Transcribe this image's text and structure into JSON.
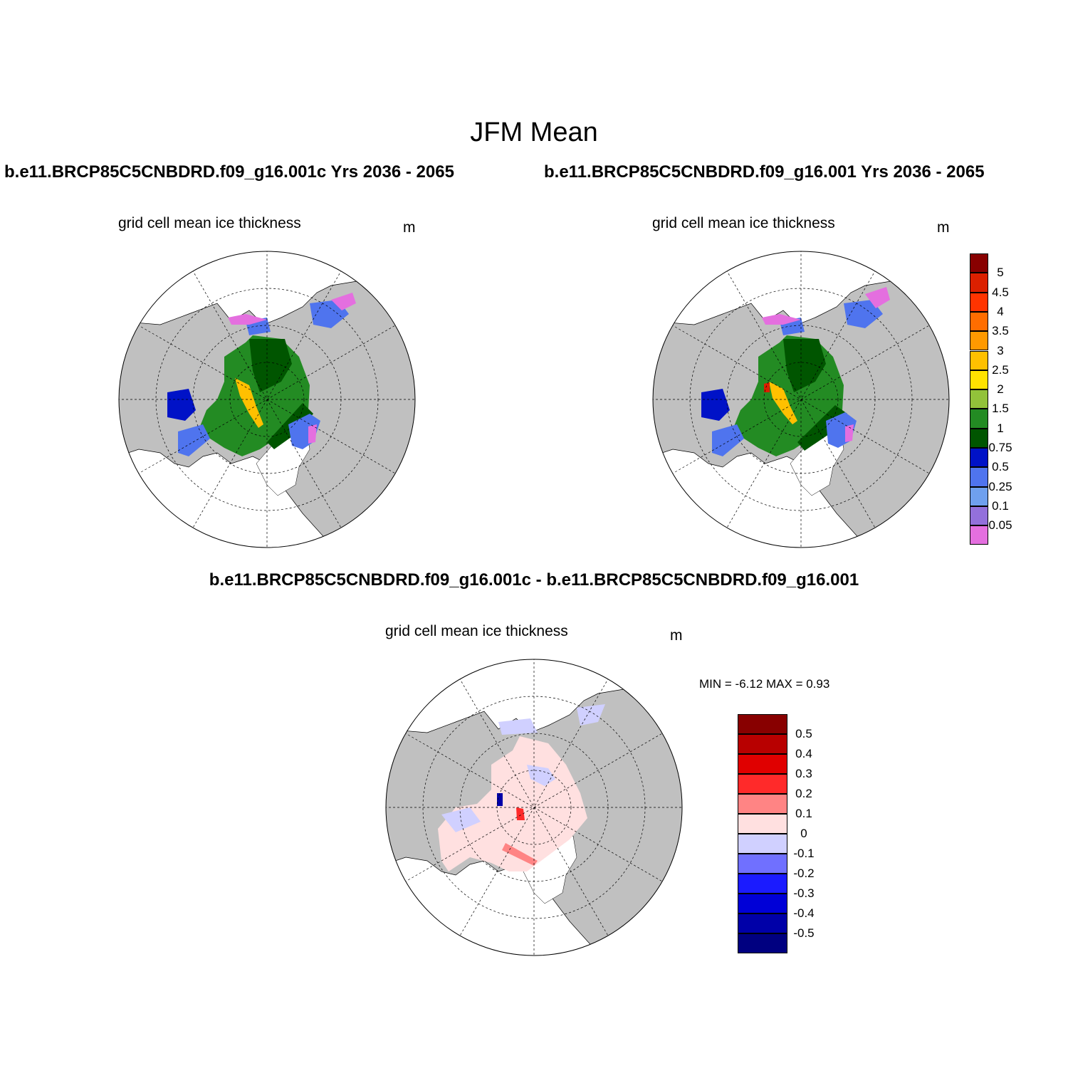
{
  "title": "JFM Mean",
  "case_titles": {
    "left": "b.e11.BRCP85C5CNBDRD.f09_g16.001c  Yrs 2036 - 2065",
    "right": "b.e11.BRCP85C5CNBDRD.f09_g16.001  Yrs 2036 - 2065"
  },
  "diff_title": "b.e11.BRCP85C5CNBDRD.f09_g16.001c - b.e11.BRCP85C5CNBDRD.f09_g16.001",
  "panels": [
    {
      "label": "grid cell mean ice thickness",
      "unit": "m"
    },
    {
      "label": "grid cell mean ice thickness",
      "unit": "m"
    },
    {
      "label": "grid cell mean ice thickness",
      "unit": "m"
    }
  ],
  "minmax": "MIN =  -6.12 MAX =   0.93",
  "colorbar_thickness": {
    "labels": [
      "5",
      "4.5",
      "4",
      "3.5",
      "3",
      "2.5",
      "2",
      "1.5",
      "1",
      "0.75",
      "0.5",
      "0.25",
      "0.1",
      "0.05"
    ],
    "colors": [
      "#e46fdf",
      "#9370db",
      "#6fa0ee",
      "#4f74ee",
      "#0012c7",
      "#005500",
      "#238b23",
      "#92c23a",
      "#ffe200",
      "#ffc000",
      "#ff9900",
      "#ff6d00",
      "#ff3400",
      "#db2000",
      "#880000"
    ]
  },
  "colorbar_diff": {
    "labels": [
      "0.5",
      "0.4",
      "0.3",
      "0.2",
      "0.1",
      "0",
      "-0.1",
      "-0.2",
      "-0.3",
      "-0.4",
      "-0.5"
    ],
    "colors": [
      "#000080",
      "#0000a8",
      "#0000d7",
      "#1b1bff",
      "#7070ff",
      "#d0d0ff",
      "#ffe0e0",
      "#ff8484",
      "#ff2a2a",
      "#e00000",
      "#b80000",
      "#880000"
    ]
  },
  "colors": {
    "land": "#c0c0c0",
    "ocean": "#ffffff"
  }
}
